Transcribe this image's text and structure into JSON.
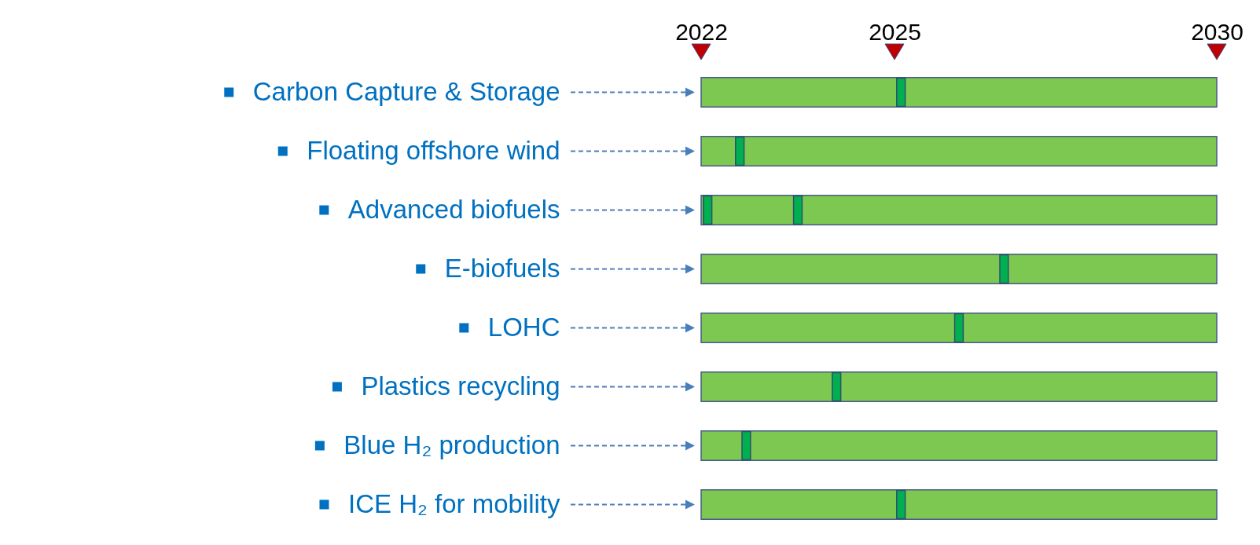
{
  "chart_data": {
    "type": "bar",
    "orientation": "horizontal",
    "categories": [
      "Carbon Capture & Storage",
      "Floating offshore wind",
      "Advanced biofuels",
      "E-biofuels",
      "LOHC",
      "Plastics recycling",
      "Blue H₂ production",
      "ICE H₂ for mobility"
    ],
    "series": [
      {
        "color": "#7cc850",
        "values": [
          2030,
          2030,
          2030,
          2030,
          2030,
          2030,
          2030,
          2030
        ]
      },
      {
        "type": "scatter",
        "color": "#00b050",
        "marker": "square",
        "values": [
          2025.1,
          2022.6,
          2022.1,
          2026.7,
          2026.0,
          2024.1,
          2022.7,
          2025.1
        ]
      },
      {
        "type": "scatter",
        "color": "#00b050",
        "marker": "square",
        "values": [
          null,
          null,
          2023.5,
          null,
          null,
          null,
          null,
          null
        ]
      }
    ],
    "xlim": [
      2022,
      2030
    ],
    "xticks": [
      2022,
      2025,
      2030
    ],
    "grid": false
  }
}
